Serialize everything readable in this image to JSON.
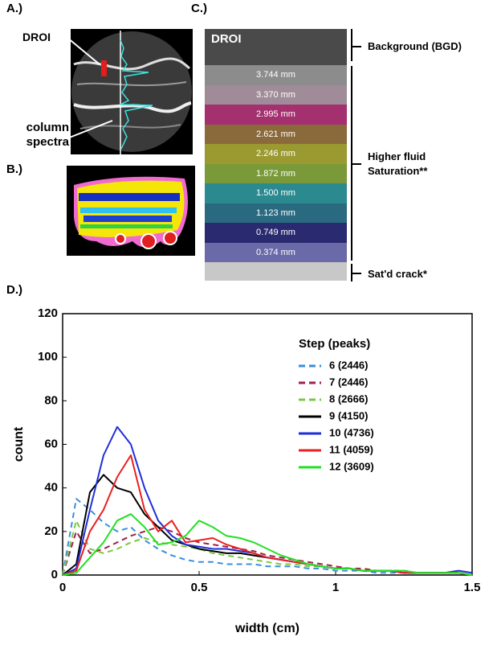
{
  "panels": {
    "a": {
      "label": "A.)",
      "droi": "DROI",
      "column_spectra": "column spectra"
    },
    "b": {
      "label": "B.)"
    },
    "c": {
      "label": "C.)",
      "droi": "DROI",
      "bands": [
        "3.744 mm",
        "3.370 mm",
        "2.995 mm",
        "2.621 mm",
        "2.246 mm",
        "1.872 mm",
        "1.500 mm",
        "1.123 mm",
        "0.749 mm",
        "0.374 mm"
      ],
      "background": "Background (BGD)",
      "higher_fluid": "Higher fluid Saturation**",
      "crack": "Sat'd crack*"
    }
  },
  "chart_data": {
    "type": "line",
    "label": "D.)",
    "x_label": "width (cm)",
    "y_label": "count",
    "legend_title": "Step (peaks)",
    "x": [
      0,
      0.05,
      0.1,
      0.15,
      0.2,
      0.25,
      0.3,
      0.35,
      0.4,
      0.45,
      0.5,
      0.55,
      0.6,
      0.65,
      0.7,
      0.75,
      0.8,
      0.85,
      0.9,
      0.95,
      1.0,
      1.05,
      1.1,
      1.15,
      1.2,
      1.25,
      1.3,
      1.35,
      1.4,
      1.45,
      1.5
    ],
    "series": [
      {
        "name": "6 (2446)",
        "color": "#3a8fd9",
        "dashed": true,
        "values": [
          0,
          35,
          30,
          24,
          20,
          22,
          16,
          12,
          9,
          7,
          6,
          6,
          5,
          5,
          5,
          4,
          4,
          4,
          3,
          3,
          2,
          2,
          2,
          1,
          1,
          1,
          1,
          1,
          1,
          1,
          0
        ]
      },
      {
        "name": "7 (2446)",
        "color": "#a0204a",
        "dashed": true,
        "values": [
          0,
          20,
          10,
          12,
          15,
          18,
          20,
          22,
          20,
          17,
          15,
          14,
          13,
          12,
          11,
          9,
          8,
          7,
          6,
          5,
          4,
          3,
          3,
          2,
          2,
          2,
          1,
          1,
          1,
          1,
          0
        ]
      },
      {
        "name": "8 (2666)",
        "color": "#7ac943",
        "dashed": true,
        "values": [
          0,
          25,
          12,
          10,
          12,
          15,
          17,
          15,
          14,
          13,
          12,
          10,
          9,
          8,
          7,
          6,
          5,
          5,
          4,
          4,
          3,
          3,
          2,
          2,
          2,
          1,
          1,
          1,
          1,
          1,
          0
        ]
      },
      {
        "name": "9 (4150)",
        "color": "#000000",
        "dashed": false,
        "values": [
          0,
          5,
          38,
          46,
          40,
          38,
          28,
          22,
          16,
          14,
          12,
          11,
          10,
          10,
          9,
          8,
          7,
          6,
          5,
          4,
          3,
          3,
          2,
          2,
          2,
          1,
          1,
          1,
          1,
          1,
          0
        ]
      },
      {
        "name": "10 (4736)",
        "color": "#1f2fd8",
        "dashed": false,
        "values": [
          0,
          3,
          30,
          55,
          68,
          60,
          40,
          25,
          18,
          14,
          13,
          12,
          12,
          11,
          10,
          8,
          7,
          6,
          5,
          4,
          3,
          3,
          2,
          2,
          2,
          1,
          1,
          1,
          1,
          2,
          1
        ]
      },
      {
        "name": "11 (4059)",
        "color": "#e8211f",
        "dashed": false,
        "values": [
          0,
          2,
          20,
          30,
          45,
          55,
          30,
          20,
          25,
          15,
          16,
          17,
          14,
          12,
          10,
          8,
          7,
          6,
          5,
          4,
          3,
          3,
          2,
          2,
          2,
          1,
          1,
          1,
          1,
          1,
          0
        ]
      },
      {
        "name": "12 (3609)",
        "color": "#22e022",
        "dashed": false,
        "values": [
          0,
          1,
          8,
          15,
          25,
          28,
          22,
          14,
          15,
          18,
          25,
          22,
          18,
          17,
          15,
          12,
          9,
          7,
          5,
          4,
          3,
          3,
          2,
          2,
          2,
          2,
          1,
          1,
          1,
          1,
          0
        ]
      }
    ],
    "xlim": [
      0,
      1.5
    ],
    "xticks": [
      0,
      0.5,
      1,
      1.5
    ],
    "ylim": [
      0,
      120
    ],
    "yticks": [
      0,
      20,
      40,
      60,
      80,
      100,
      120
    ],
    "grid": false
  }
}
